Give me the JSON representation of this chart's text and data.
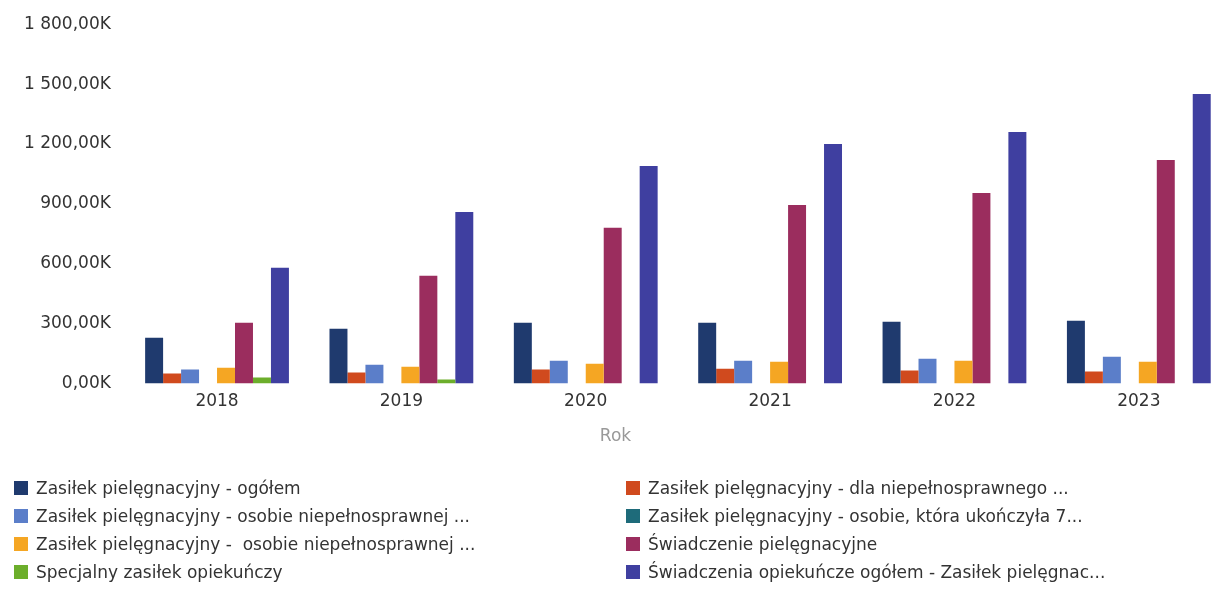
{
  "chart_data": {
    "type": "bar",
    "xlabel": "Rok",
    "categories": [
      "2018",
      "2019",
      "2020",
      "2021",
      "2022",
      "2023"
    ],
    "series": [
      {
        "name": "Zasiłek pielęgnacyjny - ogółem",
        "color": "#1f3a6e",
        "values": [
          230,
          275,
          305,
          305,
          310,
          315
        ]
      },
      {
        "name": "Zasiłek pielęgnacyjny - dla niepełnosprawnego ...",
        "color": "#d04a1e",
        "values": [
          50,
          55,
          70,
          75,
          65,
          60
        ]
      },
      {
        "name": "Zasiłek pielęgnacyjny - osobie niepełnosprawnej ...",
        "color": "#5b7ec9",
        "values": [
          70,
          95,
          115,
          115,
          125,
          135
        ]
      },
      {
        "name": "Zasiłek pielęgnacyjny - osobie, która ukończyła 7...",
        "color": "#1e6b7a",
        "values": [
          0,
          0,
          0,
          0,
          0,
          0
        ]
      },
      {
        "name": "Zasiłek pielęgnacyjny -  osobie niepełnosprawnej ...",
        "color": "#f5a623",
        "values": [
          80,
          85,
          100,
          110,
          115,
          110
        ]
      },
      {
        "name": "Świadczenie pielęgnacyjne",
        "color": "#9b2d5e",
        "values": [
          305,
          540,
          780,
          895,
          955,
          1120
        ]
      },
      {
        "name": "Specjalny zasiłek opiekuńczy",
        "color": "#6cae2b",
        "values": [
          30,
          20,
          0,
          0,
          0,
          0
        ]
      },
      {
        "name": "Świadczenia opiekuńcze ogółem - Zasiłek pielęgnac...",
        "color": "#3f3fa0",
        "values": [
          580,
          860,
          1090,
          1200,
          1260,
          1450
        ]
      }
    ],
    "ylim": [
      0,
      1800
    ],
    "yticks": [
      {
        "value": 0,
        "label": "0,00K"
      },
      {
        "value": 300,
        "label": "300,00K"
      },
      {
        "value": 600,
        "label": "600,00K"
      },
      {
        "value": 900,
        "label": "900,00K"
      },
      {
        "value": 1200,
        "label": "1 200,00K"
      },
      {
        "value": 1500,
        "label": "1 500,00K"
      },
      {
        "value": 1800,
        "label": "1 800,00K"
      }
    ],
    "grid": false,
    "legend": "bottom"
  }
}
